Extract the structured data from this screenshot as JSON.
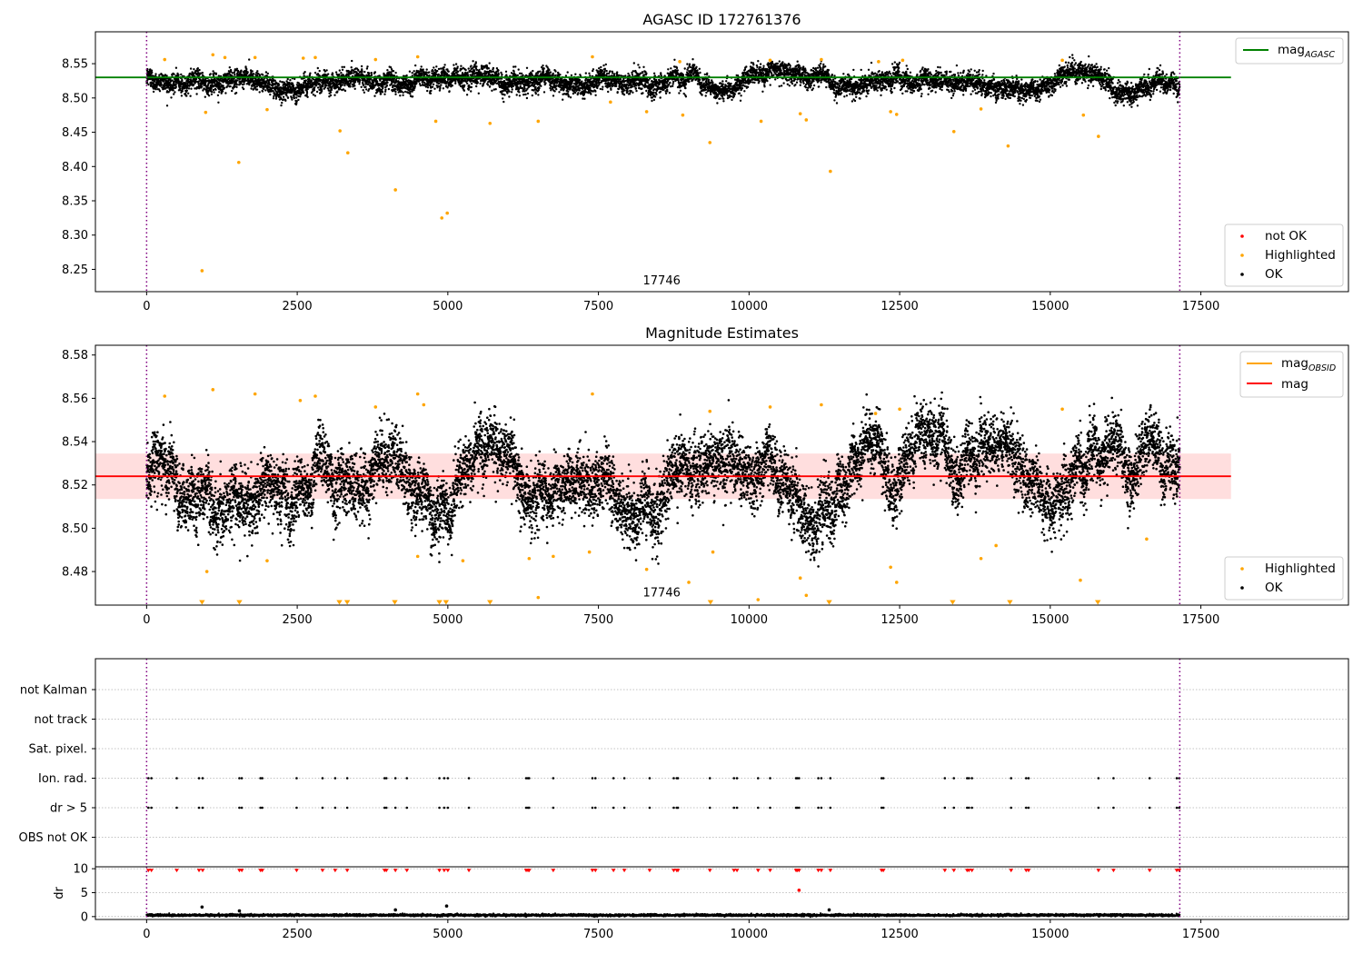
{
  "chart_data": [
    {
      "type": "scatter",
      "title": "AGASC ID 172761376",
      "xlabel": "",
      "ylabel": "",
      "xlim": [
        -850,
        19950
      ],
      "ylim": [
        8.2175,
        8.5965
      ],
      "xticks": [
        0,
        2500,
        5000,
        7500,
        10000,
        12500,
        15000,
        17500
      ],
      "xtick_labels": [
        "0",
        "2500",
        "5000",
        "7500",
        "10000",
        "12500",
        "15000",
        "17500"
      ],
      "yticks": [
        8.25,
        8.3,
        8.35,
        8.4,
        8.45,
        8.5,
        8.55
      ],
      "ytick_labels": [
        "8.25",
        "8.30",
        "8.35",
        "8.40",
        "8.45",
        "8.50",
        "8.55"
      ],
      "vlines": [
        0,
        17150
      ],
      "annotation": {
        "text": "17746",
        "x": 8550,
        "y": 8.228
      },
      "series": [
        {
          "name": "OK",
          "color": "#000000",
          "band": {
            "x_start": 0,
            "x_end": 17150,
            "center": 8.527,
            "spread": 0.013
          }
        },
        {
          "name": "Highlighted",
          "color": "#ffa500",
          "points": [
            [
              920,
              8.248
            ],
            [
              4900,
              8.325
            ],
            [
              4990,
              8.332
            ],
            [
              4130,
              8.366
            ],
            [
              1530,
              8.406
            ],
            [
              3340,
              8.42
            ],
            [
              3210,
              8.452
            ],
            [
              11350,
              8.393
            ],
            [
              9350,
              8.435
            ],
            [
              13400,
              8.451
            ],
            [
              14300,
              8.43
            ],
            [
              15800,
              8.444
            ],
            [
              980,
              8.479
            ],
            [
              2000,
              8.483
            ],
            [
              4800,
              8.466
            ],
            [
              5700,
              8.463
            ],
            [
              6500,
              8.466
            ],
            [
              7700,
              8.494
            ],
            [
              8300,
              8.48
            ],
            [
              8900,
              8.475
            ],
            [
              10200,
              8.466
            ],
            [
              10850,
              8.477
            ],
            [
              10950,
              8.468
            ],
            [
              12350,
              8.48
            ],
            [
              12450,
              8.476
            ],
            [
              13850,
              8.484
            ],
            [
              15550,
              8.475
            ],
            [
              300,
              8.556
            ],
            [
              1100,
              8.563
            ],
            [
              1300,
              8.559
            ],
            [
              1800,
              8.559
            ],
            [
              2600,
              8.558
            ],
            [
              2800,
              8.559
            ],
            [
              3800,
              8.556
            ],
            [
              4500,
              8.56
            ],
            [
              7400,
              8.56
            ],
            [
              8850,
              8.553
            ],
            [
              10350,
              8.555
            ],
            [
              11200,
              8.556
            ],
            [
              12150,
              8.553
            ],
            [
              12550,
              8.555
            ],
            [
              15200,
              8.555
            ]
          ]
        },
        {
          "name": "not OK",
          "color": "#ff0000",
          "points": []
        }
      ],
      "hlines": [
        {
          "name": "mag_AGASC",
          "color": "#008000",
          "y": 8.53,
          "x_end": 18000
        }
      ],
      "legends": [
        {
          "placement": "top-right",
          "entries": [
            {
              "label": "mag",
              "sub": "AGASC",
              "color": "#008000",
              "kind": "line"
            }
          ]
        },
        {
          "placement": "bottom-right",
          "entries": [
            {
              "label": "not OK",
              "color": "#ff0000",
              "kind": "dot"
            },
            {
              "label": "Highlighted",
              "color": "#ffa500",
              "kind": "dot"
            },
            {
              "label": "OK",
              "color": "#000000",
              "kind": "dot"
            }
          ]
        }
      ]
    },
    {
      "type": "scatter",
      "title": "Magnitude Estimates",
      "xlabel": "",
      "ylabel": "",
      "xlim": [
        -850,
        19950
      ],
      "ylim": [
        8.4645,
        8.5845
      ],
      "xticks": [
        0,
        2500,
        5000,
        7500,
        10000,
        12500,
        15000,
        17500
      ],
      "xtick_labels": [
        "0",
        "2500",
        "5000",
        "7500",
        "10000",
        "12500",
        "15000",
        "17500"
      ],
      "yticks": [
        8.48,
        8.5,
        8.52,
        8.54,
        8.56,
        8.58
      ],
      "ytick_labels": [
        "8.48",
        "8.50",
        "8.52",
        "8.54",
        "8.56",
        "8.58"
      ],
      "vlines": [
        0,
        17150
      ],
      "annotation": {
        "text": "17746",
        "x": 8550,
        "y": 8.4685
      },
      "shaded_band": {
        "x_start": -850,
        "x_end": 18000,
        "y_low": 8.5135,
        "y_high": 8.5345,
        "color": "#ffcccc"
      },
      "series": [
        {
          "name": "OK",
          "color": "#000000",
          "band": {
            "x_start": 0,
            "x_end": 17150,
            "center": 8.524,
            "spread": 0.013
          }
        },
        {
          "name": "Highlighted",
          "color": "#ffa500",
          "points": [
            [
              1000,
              8.48
            ],
            [
              2000,
              8.485
            ],
            [
              4500,
              8.487
            ],
            [
              5250,
              8.485
            ],
            [
              6350,
              8.486
            ],
            [
              6500,
              8.468
            ],
            [
              6750,
              8.487
            ],
            [
              7350,
              8.489
            ],
            [
              8300,
              8.481
            ],
            [
              9000,
              8.475
            ],
            [
              9400,
              8.489
            ],
            [
              10150,
              8.467
            ],
            [
              10850,
              8.477
            ],
            [
              10950,
              8.469
            ],
            [
              12350,
              8.482
            ],
            [
              12450,
              8.475
            ],
            [
              13850,
              8.486
            ],
            [
              14100,
              8.492
            ],
            [
              15500,
              8.476
            ],
            [
              16600,
              8.495
            ],
            [
              300,
              8.561
            ],
            [
              1100,
              8.564
            ],
            [
              1800,
              8.562
            ],
            [
              2550,
              8.559
            ],
            [
              2800,
              8.561
            ],
            [
              3800,
              8.556
            ],
            [
              4500,
              8.562
            ],
            [
              4600,
              8.557
            ],
            [
              7400,
              8.562
            ],
            [
              9350,
              8.554
            ],
            [
              10350,
              8.556
            ],
            [
              11200,
              8.557
            ],
            [
              12100,
              8.553
            ],
            [
              12500,
              8.555
            ],
            [
              15200,
              8.555
            ]
          ]
        },
        {
          "name": "Highlighted (below range)",
          "color": "#ffa500",
          "marker": "triangle",
          "x": [
            920,
            1540,
            3200,
            3330,
            4120,
            4860,
            4970,
            5700,
            9360,
            11330,
            13380,
            14330,
            15790
          ]
        }
      ],
      "hlines": [
        {
          "name": "mag",
          "color": "#ff0000",
          "y": 8.524,
          "x_end": 18000
        }
      ],
      "legends": [
        {
          "placement": "top-right",
          "entries": [
            {
              "label": "mag",
              "sub": "OBSID",
              "color": "#ffa500",
              "kind": "line"
            },
            {
              "label": "mag",
              "sub": "",
              "color": "#ff0000",
              "kind": "line"
            }
          ]
        },
        {
          "placement": "bottom-right",
          "entries": [
            {
              "label": "Highlighted",
              "color": "#ffa500",
              "kind": "dot"
            },
            {
              "label": "OK",
              "color": "#000000",
              "kind": "dot"
            }
          ]
        }
      ]
    },
    {
      "type": "scatter",
      "title": "",
      "xlabel": "",
      "ylabel": "",
      "xlim": [
        -850,
        19950
      ],
      "categories": [
        "not Kalman",
        "not track",
        "Sat. pixel.",
        "Ion. rad.",
        "dr > 5",
        "OBS not OK"
      ],
      "vlines": [
        0,
        17150
      ],
      "flag_x": [
        30,
        80,
        500,
        870,
        930,
        1540,
        1580,
        1890,
        1920,
        2490,
        2920,
        3130,
        3330,
        3950,
        3980,
        4130,
        4320,
        4860,
        4940,
        5000,
        5350,
        6300,
        6330,
        6350,
        6750,
        7400,
        7450,
        7750,
        7930,
        8350,
        8750,
        8800,
        8820,
        9350,
        9750,
        9800,
        10150,
        10350,
        10780,
        10800,
        10830,
        11150,
        11200,
        11350,
        12200,
        12230,
        13250,
        13400,
        13620,
        13650,
        13700,
        14350,
        14600,
        14640,
        15800,
        16050,
        16650,
        17100,
        17140
      ],
      "flag_rows": [
        "Ion. rad.",
        "dr > 5"
      ]
    },
    {
      "type": "scatter",
      "title": "",
      "xlabel": "",
      "ylabel": "dr",
      "xlim": [
        -850,
        19950
      ],
      "ylim": [
        -0.6,
        10.4
      ],
      "xticks": [
        0,
        2500,
        5000,
        7500,
        10000,
        12500,
        15000,
        17500
      ],
      "xtick_labels": [
        "0",
        "2500",
        "5000",
        "7500",
        "10000",
        "12500",
        "15000",
        "17500"
      ],
      "yticks": [
        0,
        5,
        10
      ],
      "ytick_labels": [
        "0",
        "5",
        "10"
      ],
      "vlines": [
        0,
        17150
      ],
      "series": [
        {
          "name": "dr",
          "color": "#000000",
          "band": {
            "x_start": 0,
            "x_end": 17150,
            "center": 0.3,
            "spread": 0.2
          },
          "outliers": [
            [
              920,
              2.0
            ],
            [
              4130,
              1.4
            ],
            [
              4980,
              2.2
            ],
            [
              11330,
              1.4
            ],
            [
              1540,
              1.2
            ]
          ]
        },
        {
          "name": "dr clipped",
          "color": "#ff0000",
          "marker": "triangle",
          "y": 9.6
        },
        {
          "name": "dr high",
          "color": "#ff0000",
          "points": [
            [
              10830,
              5.5
            ]
          ]
        }
      ]
    }
  ]
}
